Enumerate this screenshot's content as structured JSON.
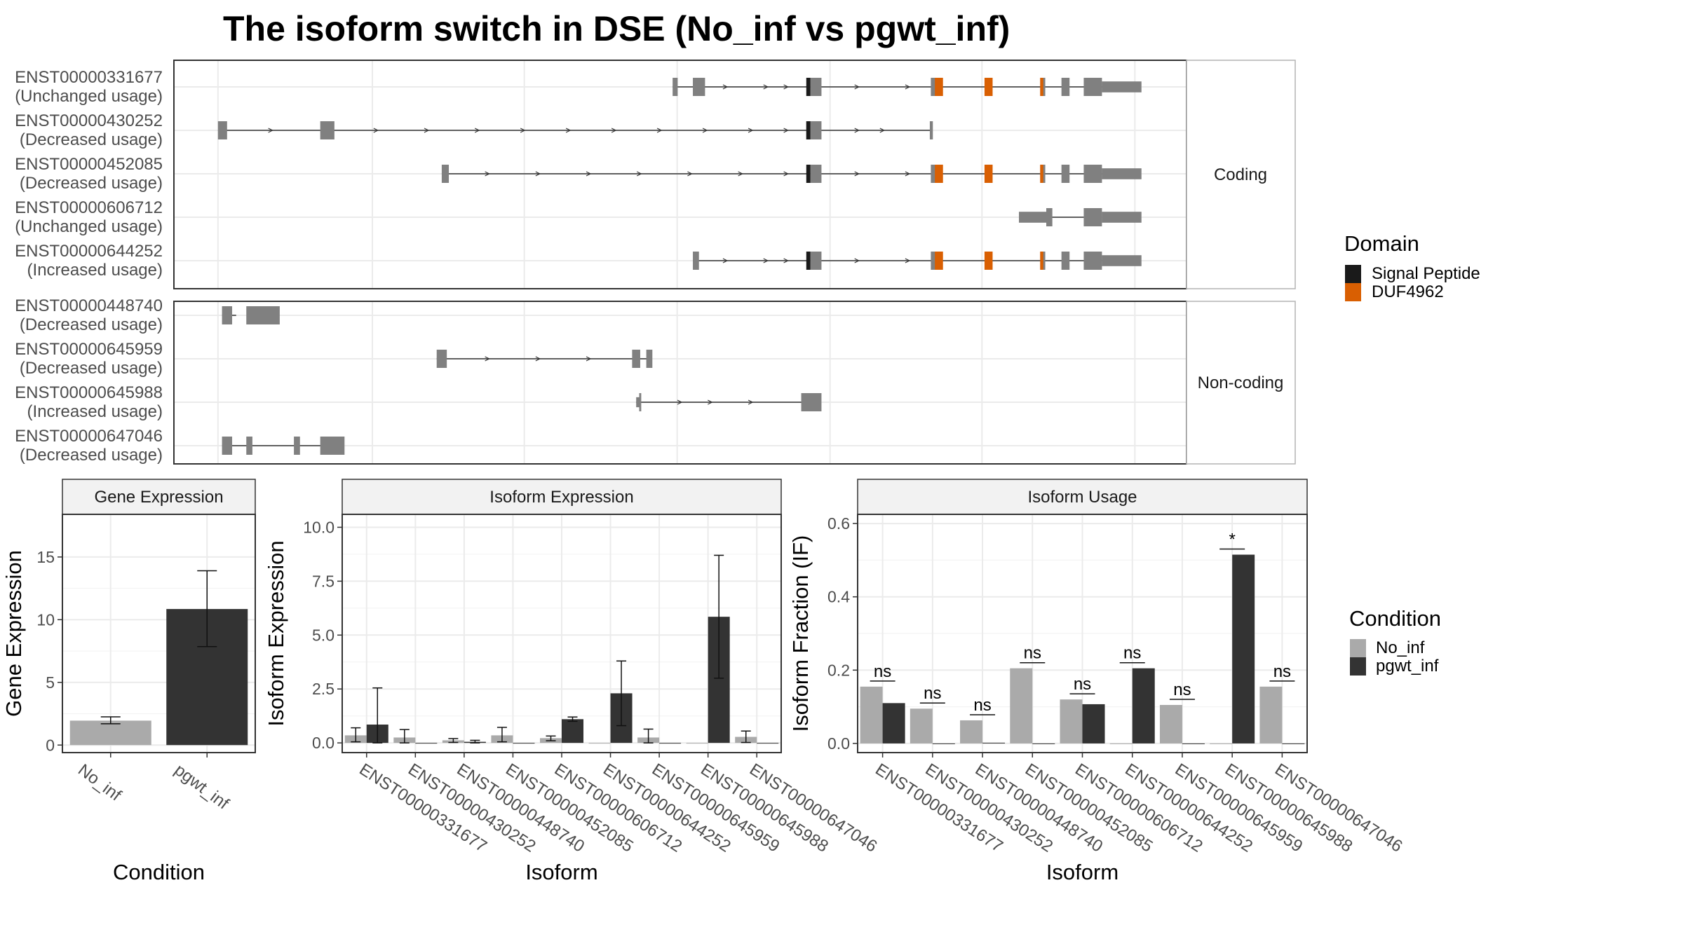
{
  "title": "The isoform switch in DSE (No_inf vs pgwt_inf)",
  "colors": {
    "signal_peptide": "#1a1a1a",
    "duf4962": "#d95f02",
    "exon": "#808080",
    "no_inf": "#aaaaaa",
    "pgwt_inf": "#333333",
    "grid": "#ebebeb",
    "strip": "#f2f2f2",
    "panel_border": "#333333",
    "strip_border": "#b3b3b3"
  },
  "transcript_panels": [
    {
      "strip": "Coding",
      "transcripts": [
        {
          "id": "ENST00000331677",
          "usage": "(Unchanged usage)",
          "intron": [
            0.4925,
            0.9165
          ],
          "exons": [
            {
              "s": 0.4925,
              "e": 0.4975,
              "t": 1
            },
            {
              "s": 0.5125,
              "e": 0.5245,
              "t": 1
            },
            {
              "s": 0.6285,
              "e": 0.6395,
              "t": 1
            },
            {
              "s": 0.7475,
              "e": 0.7575,
              "t": 1
            },
            {
              "s": 0.8555,
              "e": 0.8605,
              "t": 1
            },
            {
              "s": 0.8765,
              "e": 0.8845,
              "t": 1
            },
            {
              "s": 0.8985,
              "e": 0.9165,
              "t": 1
            },
            {
              "s": 0.9165,
              "e": 0.9555,
              "t": 0.6
            }
          ],
          "domains": [
            {
              "s": 0.6245,
              "e": 0.6285,
              "d": "signal"
            },
            {
              "s": 0.7515,
              "e": 0.7595,
              "d": "duf"
            },
            {
              "s": 0.8005,
              "e": 0.8085,
              "d": "duf"
            },
            {
              "s": 0.8555,
              "e": 0.8585,
              "d": "duf"
            }
          ],
          "arrows": [
            0.545,
            0.585,
            0.605,
            0.675,
            0.725
          ]
        },
        {
          "id": "ENST00000430252",
          "usage": "(Decreased usage)",
          "intron": [
            0.0435,
            0.7485
          ],
          "exons": [
            {
              "s": 0.0435,
              "e": 0.0525,
              "t": 1
            },
            {
              "s": 0.1445,
              "e": 0.1585,
              "t": 1
            },
            {
              "s": 0.6245,
              "e": 0.6395,
              "t": 1
            },
            {
              "s": 0.7465,
              "e": 0.7495,
              "t": 1
            }
          ],
          "domains": [
            {
              "s": 0.6245,
              "e": 0.6285,
              "d": "signal"
            }
          ],
          "arrows": [
            0.096,
            0.2,
            0.25,
            0.3,
            0.345,
            0.39,
            0.435,
            0.48,
            0.525,
            0.57,
            0.605,
            0.675,
            0.7
          ]
        },
        {
          "id": "ENST00000452085",
          "usage": "(Decreased usage)",
          "intron": [
            0.2645,
            0.9165
          ],
          "exons": [
            {
              "s": 0.2645,
              "e": 0.2715,
              "t": 1
            },
            {
              "s": 0.6285,
              "e": 0.6395,
              "t": 1
            },
            {
              "s": 0.7475,
              "e": 0.7575,
              "t": 1
            },
            {
              "s": 0.8555,
              "e": 0.8605,
              "t": 1
            },
            {
              "s": 0.8765,
              "e": 0.8845,
              "t": 1
            },
            {
              "s": 0.8985,
              "e": 0.9165,
              "t": 1
            },
            {
              "s": 0.9165,
              "e": 0.9555,
              "t": 0.6
            }
          ],
          "domains": [
            {
              "s": 0.6245,
              "e": 0.6285,
              "d": "signal"
            },
            {
              "s": 0.7515,
              "e": 0.7595,
              "d": "duf"
            },
            {
              "s": 0.8005,
              "e": 0.8085,
              "d": "duf"
            },
            {
              "s": 0.8555,
              "e": 0.8585,
              "d": "duf"
            }
          ],
          "arrows": [
            0.31,
            0.36,
            0.41,
            0.46,
            0.51,
            0.56,
            0.605,
            0.675,
            0.725
          ]
        },
        {
          "id": "ENST00000606712",
          "usage": "(Unchanged usage)",
          "intron": [
            0.8615,
            0.8985
          ],
          "exons": [
            {
              "s": 0.8345,
              "e": 0.8615,
              "t": 0.6
            },
            {
              "s": 0.8615,
              "e": 0.8675,
              "t": 1
            },
            {
              "s": 0.8985,
              "e": 0.9165,
              "t": 1
            },
            {
              "s": 0.9165,
              "e": 0.9555,
              "t": 0.6
            }
          ],
          "domains": [],
          "arrows": []
        },
        {
          "id": "ENST00000644252",
          "usage": "(Increased usage)",
          "intron": [
            0.5125,
            0.9165
          ],
          "exons": [
            {
              "s": 0.5125,
              "e": 0.5185,
              "t": 1
            },
            {
              "s": 0.6285,
              "e": 0.6395,
              "t": 1
            },
            {
              "s": 0.7475,
              "e": 0.7575,
              "t": 1
            },
            {
              "s": 0.8555,
              "e": 0.8605,
              "t": 1
            },
            {
              "s": 0.8765,
              "e": 0.8845,
              "t": 1
            },
            {
              "s": 0.8985,
              "e": 0.9165,
              "t": 1
            },
            {
              "s": 0.9165,
              "e": 0.9555,
              "t": 0.6
            }
          ],
          "domains": [
            {
              "s": 0.6245,
              "e": 0.6285,
              "d": "signal"
            },
            {
              "s": 0.7515,
              "e": 0.7595,
              "d": "duf"
            },
            {
              "s": 0.8005,
              "e": 0.8085,
              "d": "duf"
            },
            {
              "s": 0.8555,
              "e": 0.8585,
              "d": "duf"
            }
          ],
          "arrows": [
            0.545,
            0.585,
            0.605,
            0.675,
            0.725
          ]
        }
      ]
    },
    {
      "strip": "Non-coding",
      "transcripts": [
        {
          "id": "ENST00000448740",
          "usage": "(Decreased usage)",
          "intron": [
            0.0475,
            0.0615
          ],
          "exons": [
            {
              "s": 0.0475,
              "e": 0.0575,
              "t": 1
            },
            {
              "s": 0.0715,
              "e": 0.1045,
              "t": 1
            }
          ],
          "domains": [],
          "arrows": []
        },
        {
          "id": "ENST00000645959",
          "usage": "(Decreased usage)",
          "intron": [
            0.2595,
            0.4695
          ],
          "exons": [
            {
              "s": 0.2595,
              "e": 0.2695,
              "t": 1
            },
            {
              "s": 0.4525,
              "e": 0.4605,
              "t": 1
            },
            {
              "s": 0.4665,
              "e": 0.4725,
              "t": 1
            }
          ],
          "domains": [],
          "arrows": [
            0.31,
            0.36,
            0.41
          ]
        },
        {
          "id": "ENST00000645988",
          "usage": "(Increased usage)",
          "intron": [
            0.4565,
            0.6295
          ],
          "exons": [
            {
              "s": 0.4565,
              "e": 0.4605,
              "t": 0.55
            },
            {
              "s": 0.4595,
              "e": 0.4615,
              "t": 1
            },
            {
              "s": 0.6195,
              "e": 0.6395,
              "t": 1
            }
          ],
          "domains": [],
          "arrows": [
            0.5,
            0.53,
            0.57
          ]
        },
        {
          "id": "ENST00000647046",
          "usage": "(Decreased usage)",
          "intron": [
            0.0475,
            0.1575
          ],
          "exons": [
            {
              "s": 0.0475,
              "e": 0.0575,
              "t": 1
            },
            {
              "s": 0.0715,
              "e": 0.0775,
              "t": 1
            },
            {
              "s": 0.1185,
              "e": 0.1245,
              "t": 1
            },
            {
              "s": 0.1445,
              "e": 0.1685,
              "t": 1
            }
          ],
          "domains": [],
          "arrows": []
        }
      ]
    }
  ],
  "domain_legend": {
    "title": "Domain",
    "items": [
      {
        "label": "Signal Peptide",
        "key": "signal_peptide"
      },
      {
        "label": "DUF4962",
        "key": "duf4962"
      }
    ]
  },
  "condition_legend": {
    "title": "Condition",
    "items": [
      {
        "label": "No_inf",
        "key": "no_inf"
      },
      {
        "label": "pgwt_inf",
        "key": "pgwt_inf"
      }
    ]
  },
  "chart_data": [
    {
      "type": "bar",
      "title": "Gene Expression",
      "xlabel": "Condition",
      "ylabel": "Gene Expression",
      "categories": [
        "No_inf",
        "pgwt_inf"
      ],
      "values": [
        1.95,
        10.85
      ],
      "errors": [
        [
          1.7,
          2.25
        ],
        [
          7.85,
          13.9
        ]
      ],
      "ylim": [
        -0.6,
        18.4
      ],
      "yticks": [
        0,
        5,
        10,
        15
      ],
      "ytick_labels": [
        "0",
        "5",
        "10",
        "15"
      ]
    },
    {
      "type": "bar",
      "title": "Isoform Expression",
      "xlabel": "Isoform",
      "ylabel": "Isoform Expression",
      "categories": [
        "ENST00000331677",
        "ENST00000430252",
        "ENST00000448740",
        "ENST00000452085",
        "ENST00000606712",
        "ENST00000644252",
        "ENST00000645959",
        "ENST00000645988",
        "ENST00000647046"
      ],
      "series": [
        {
          "name": "No_inf",
          "values": [
            0.35,
            0.25,
            0.12,
            0.35,
            0.22,
            0.0,
            0.25,
            0.0,
            0.28
          ],
          "errors": [
            [
              0.05,
              0.7
            ],
            [
              0.0,
              0.62
            ],
            [
              0.02,
              0.2
            ],
            [
              0.05,
              0.72
            ],
            [
              0.1,
              0.32
            ],
            null,
            [
              0.0,
              0.64
            ],
            null,
            [
              0.02,
              0.55
            ]
          ]
        },
        {
          "name": "pgwt_inf",
          "values": [
            0.85,
            0.0,
            0.05,
            0.0,
            1.1,
            2.3,
            0.0,
            5.85,
            0.0
          ],
          "errors": [
            [
              0.0,
              2.55
            ],
            null,
            [
              0.0,
              0.12
            ],
            null,
            [
              1.0,
              1.2
            ],
            [
              0.8,
              3.8
            ],
            null,
            [
              3.0,
              8.7
            ],
            null
          ]
        }
      ],
      "ylim": [
        -0.45,
        10.6
      ],
      "yticks": [
        0,
        2.5,
        5,
        7.5,
        10
      ],
      "ytick_labels": [
        "0.0",
        "2.5",
        "5.0",
        "7.5",
        "10.0"
      ]
    },
    {
      "type": "bar",
      "title": "Isoform Usage",
      "xlabel": "Isoform",
      "ylabel": "Isoform Fraction (IF)",
      "categories": [
        "ENST00000331677",
        "ENST00000430252",
        "ENST00000448740",
        "ENST00000452085",
        "ENST00000606712",
        "ENST00000644252",
        "ENST00000645959",
        "ENST00000645988",
        "ENST00000647046"
      ],
      "series": [
        {
          "name": "No_inf",
          "values": [
            0.155,
            0.095,
            0.063,
            0.205,
            0.12,
            0.0,
            0.105,
            0.0,
            0.155
          ]
        },
        {
          "name": "pgwt_inf",
          "values": [
            0.11,
            0.0,
            0.002,
            0.0,
            0.107,
            0.205,
            0.0,
            0.515,
            0.0
          ]
        }
      ],
      "significance": [
        "ns",
        "ns",
        "ns",
        "ns",
        "ns",
        "ns",
        "ns",
        "*",
        "ns"
      ],
      "ylim": [
        -0.025,
        0.625
      ],
      "yticks": [
        0,
        0.2,
        0.4,
        0.6
      ],
      "ytick_labels": [
        "0.0",
        "0.2",
        "0.4",
        "0.6"
      ]
    }
  ]
}
